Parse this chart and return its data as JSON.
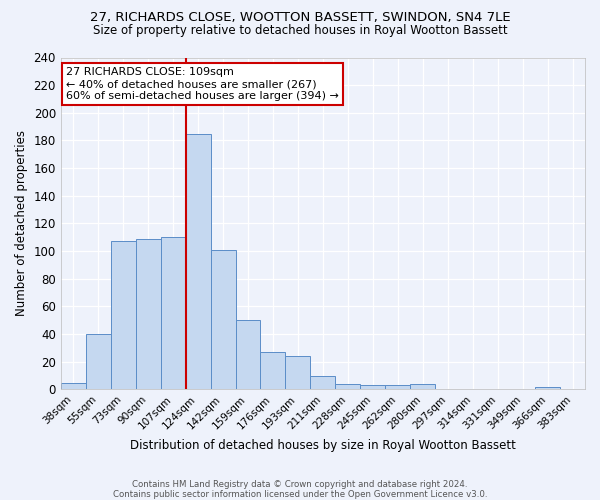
{
  "title1": "27, RICHARDS CLOSE, WOOTTON BASSETT, SWINDON, SN4 7LE",
  "title2": "Size of property relative to detached houses in Royal Wootton Bassett",
  "xlabel": "Distribution of detached houses by size in Royal Wootton Bassett",
  "ylabel": "Number of detached properties",
  "footer1": "Contains HM Land Registry data © Crown copyright and database right 2024.",
  "footer2": "Contains public sector information licensed under the Open Government Licence v3.0.",
  "categories": [
    "38sqm",
    "55sqm",
    "73sqm",
    "90sqm",
    "107sqm",
    "124sqm",
    "142sqm",
    "159sqm",
    "176sqm",
    "193sqm",
    "211sqm",
    "228sqm",
    "245sqm",
    "262sqm",
    "280sqm",
    "297sqm",
    "314sqm",
    "331sqm",
    "349sqm",
    "366sqm",
    "383sqm"
  ],
  "values": [
    5,
    40,
    107,
    109,
    110,
    185,
    101,
    50,
    27,
    24,
    10,
    4,
    3,
    3,
    4,
    0,
    0,
    0,
    0,
    2,
    0
  ],
  "bar_color": "#c5d8f0",
  "bar_edge_color": "#5b8dc8",
  "background_color": "#eef2fb",
  "grid_color": "#ffffff",
  "vline_x": 4.5,
  "vline_color": "#cc0000",
  "annotation_text": "27 RICHARDS CLOSE: 109sqm\n← 40% of detached houses are smaller (267)\n60% of semi-detached houses are larger (394) →",
  "annotation_box_color": "#ffffff",
  "annotation_box_edge": "#cc0000",
  "ylim": [
    0,
    240
  ],
  "yticks": [
    0,
    20,
    40,
    60,
    80,
    100,
    120,
    140,
    160,
    180,
    200,
    220,
    240
  ]
}
